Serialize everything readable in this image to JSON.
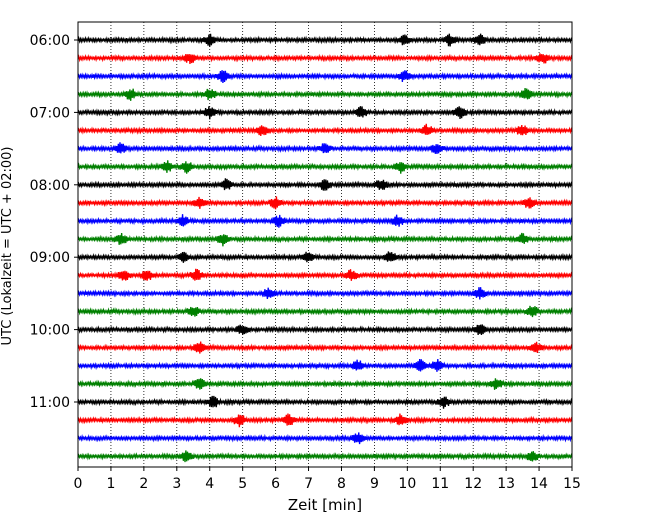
{
  "chart_data": {
    "type": "line",
    "title": "",
    "xlabel": "Zeit  [min]",
    "ylabel": "UTC (Lokalzeit = UTC + 02:00)",
    "xlim": [
      0,
      15
    ],
    "x_ticks": [
      0,
      1,
      2,
      3,
      4,
      5,
      6,
      7,
      8,
      9,
      10,
      11,
      12,
      13,
      14,
      15
    ],
    "x_tick_labels": [
      "0",
      "1",
      "2",
      "3",
      "4",
      "5",
      "6",
      "7",
      "8",
      "9",
      "10",
      "11",
      "12",
      "13",
      "14",
      "15"
    ],
    "y_tick_labels": [
      "06:00",
      "07:00",
      "08:00",
      "09:00",
      "10:00",
      "11:00"
    ],
    "grid": "vertical-dotted",
    "trace_count": 24,
    "trace_interval_min": 15,
    "trace_color_cycle": [
      "#000000",
      "#ff0000",
      "#0000ff",
      "#008000"
    ],
    "traces": [
      {
        "start": "06:00",
        "events": [
          4.0,
          9.9,
          11.3,
          12.2
        ]
      },
      {
        "start": "06:15",
        "events": [
          3.4,
          14.1
        ]
      },
      {
        "start": "06:30",
        "events": [
          4.4,
          9.9
        ]
      },
      {
        "start": "06:45",
        "events": [
          1.6,
          4.0,
          13.6
        ]
      },
      {
        "start": "07:00",
        "events": [
          4.0,
          8.6,
          11.6
        ]
      },
      {
        "start": "07:15",
        "events": [
          5.6,
          10.6,
          13.5
        ]
      },
      {
        "start": "07:30",
        "events": [
          1.3,
          7.5,
          10.9
        ]
      },
      {
        "start": "07:45",
        "events": [
          2.7,
          3.3,
          9.8
        ]
      },
      {
        "start": "08:00",
        "events": [
          4.5,
          7.5,
          9.2
        ]
      },
      {
        "start": "08:15",
        "events": [
          3.7,
          6.0,
          13.7
        ]
      },
      {
        "start": "08:30",
        "events": [
          3.2,
          6.1,
          9.7
        ]
      },
      {
        "start": "08:45",
        "events": [
          1.3,
          4.4,
          13.5
        ]
      },
      {
        "start": "09:00",
        "events": [
          3.2,
          7.0,
          9.5
        ]
      },
      {
        "start": "09:15",
        "events": [
          1.4,
          2.1,
          3.6,
          8.3
        ]
      },
      {
        "start": "09:30",
        "events": [
          5.8,
          12.2
        ]
      },
      {
        "start": "09:45",
        "events": [
          3.5,
          13.8
        ]
      },
      {
        "start": "10:00",
        "events": [
          5.0,
          12.2
        ]
      },
      {
        "start": "10:15",
        "events": [
          3.7,
          13.9
        ]
      },
      {
        "start": "10:30",
        "events": [
          8.5,
          10.4,
          10.9
        ]
      },
      {
        "start": "10:45",
        "events": [
          3.7,
          12.7
        ]
      },
      {
        "start": "11:00",
        "events": [
          4.1,
          11.1
        ]
      },
      {
        "start": "11:15",
        "events": [
          4.9,
          6.4,
          9.8
        ]
      },
      {
        "start": "11:30",
        "events": [
          8.5
        ]
      },
      {
        "start": "11:45",
        "events": [
          3.3,
          13.8
        ]
      }
    ]
  }
}
